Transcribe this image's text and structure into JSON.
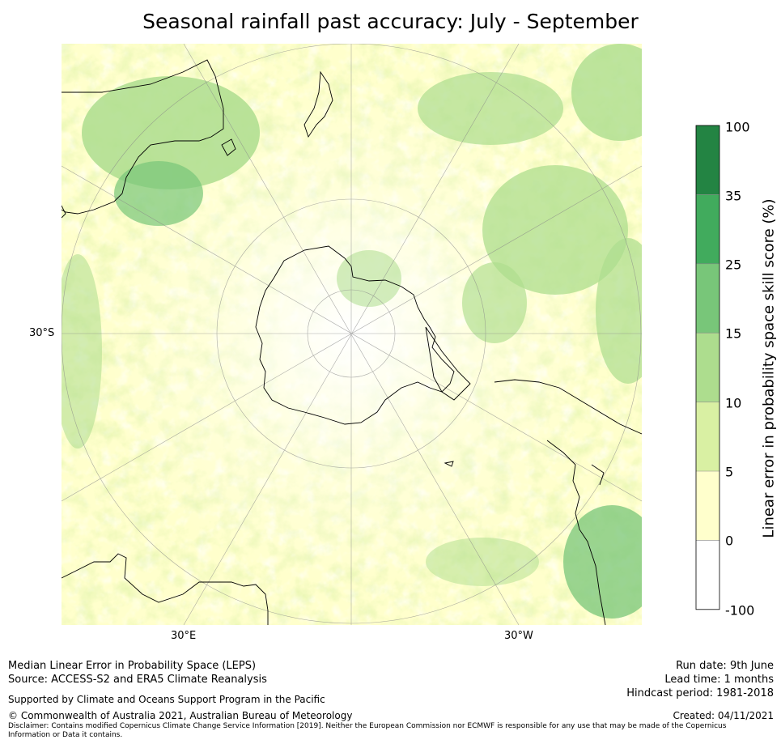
{
  "title": "Seasonal rainfall past accuracy: July - September",
  "map": {
    "projection": "south-polar-stereographic",
    "lon_labels": [
      "30°E",
      "30°W"
    ],
    "lat_labels": [
      "30°S"
    ],
    "palette": {
      "neg": "#ffffff",
      "p0_5": "#ffffcc",
      "p5_10": "#d9f0a3",
      "p10_15": "#addd8e",
      "p15_25": "#78c679",
      "p25_35": "#41ab5d",
      "p35_100": "#238443"
    },
    "coast_color": "#000000"
  },
  "colorbar": {
    "label": "Linear error in probability space skill score (%)",
    "ticks": [
      "100",
      "35",
      "25",
      "15",
      "10",
      "5",
      "0",
      "-100"
    ],
    "bins": [
      {
        "from": -100,
        "to": 0,
        "color": "#ffffff"
      },
      {
        "from": 0,
        "to": 5,
        "color": "#ffffcc"
      },
      {
        "from": 5,
        "to": 10,
        "color": "#d9f0a3"
      },
      {
        "from": 10,
        "to": 15,
        "color": "#addd8e"
      },
      {
        "from": 15,
        "to": 25,
        "color": "#78c679"
      },
      {
        "from": 25,
        "to": 35,
        "color": "#41ab5d"
      },
      {
        "from": 35,
        "to": 100,
        "color": "#238443"
      }
    ]
  },
  "footer": {
    "line1": "Median Linear Error in Probability Space (LEPS)",
    "line2": "Source: ACCESS-S2 and ERA5 Climate Reanalysis",
    "support": "Supported by Climate and Oceans Support Program in the Pacific",
    "copyright": "© Commonwealth of Australia 2021, Australian Bureau of Meteorology",
    "disclaimer1": "Disclaimer: Contains modified Copernicus Climate Change Service Information [2019]. Neither the European Commission nor ECMWF is responsible for any use that may be made of the Copernicus",
    "disclaimer2": "Information or Data it contains.",
    "run_date": "Run date: 9th June",
    "lead_time": "Lead time: 1 months",
    "hindcast": "Hindcast period: 1981-2018",
    "created": "Created: 04/11/2021"
  }
}
